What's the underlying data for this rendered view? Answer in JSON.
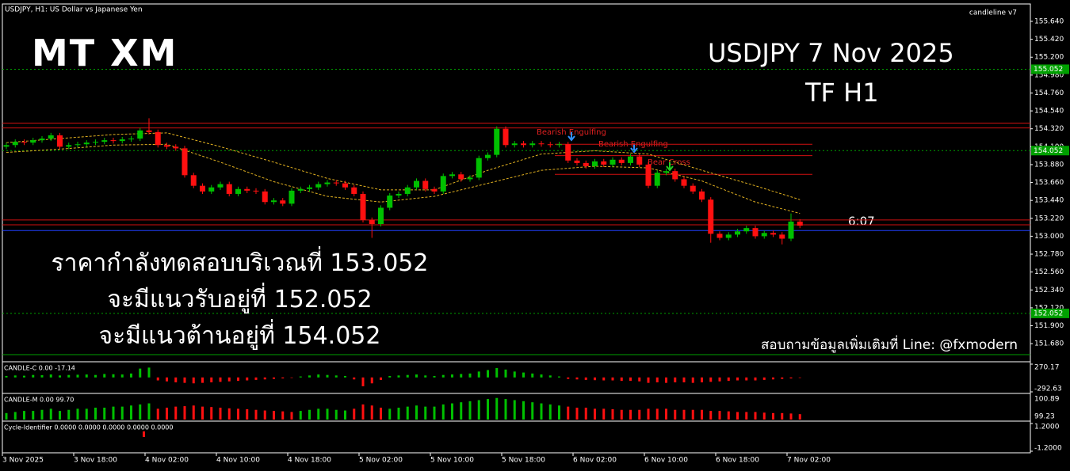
{
  "window": {
    "title": "USDJPY, H1: US Dollar vs Japanese Yen",
    "indicator_name": "candleline v7",
    "countdown": "6:07"
  },
  "overlay": {
    "logo_left": "MT",
    "logo_right": "XM",
    "headline": "USDJPY 7 Nov 2025",
    "timeframe": "TF H1",
    "lines": [
      "ราคากำลังทดสอบบริเวณที่ 153.052",
      "จะมีแนวรับอยู่ที่ 152.052",
      "จะมีแนวต้านอยู่ที่ 154.052"
    ],
    "contact": "สอบถามข้อมูลเพิ่มเติมที่ Line: @fxmodern"
  },
  "annotations": [
    "Bearish Engulfing",
    "Bearish Engulfing",
    "Bear Cross"
  ],
  "chart_data": {
    "type": "candlestick",
    "categories": [
      "3 Nov 2025",
      null,
      null,
      null,
      null,
      null,
      null,
      null,
      "3 Nov 18:00",
      null,
      null,
      null,
      null,
      null,
      null,
      null,
      "4 Nov 02:00",
      null,
      null,
      null,
      null,
      null,
      null,
      null,
      "4 Nov 10:00",
      null,
      null,
      null,
      null,
      null,
      null,
      null,
      "4 Nov 18:00",
      null,
      null,
      null,
      null,
      null,
      null,
      null,
      "5 Nov 02:00",
      null,
      null,
      null,
      null,
      null,
      null,
      null,
      "5 Nov 10:00",
      null,
      null,
      null,
      null,
      null,
      null,
      null,
      "5 Nov 18:00",
      null,
      null,
      null,
      null,
      null,
      null,
      null,
      "6 Nov 02:00",
      null,
      null,
      null,
      null,
      null,
      null,
      null,
      "6 Nov 10:00",
      null,
      null,
      null,
      null,
      null,
      null,
      null,
      "6 Nov 18:00",
      null,
      null,
      null,
      null,
      null,
      null,
      null,
      "7 Nov 02:00",
      null
    ],
    "open": [
      154.1,
      154.12,
      154.16,
      154.15,
      154.18,
      154.2,
      154.24,
      154.1,
      154.12,
      154.13,
      154.15,
      154.16,
      154.18,
      154.17,
      154.19,
      154.2,
      154.3,
      154.28,
      154.12,
      154.1,
      154.08,
      153.75,
      153.62,
      153.55,
      153.6,
      153.64,
      153.52,
      153.58,
      153.56,
      153.55,
      153.42,
      153.44,
      153.4,
      153.56,
      153.58,
      153.6,
      153.64,
      153.66,
      153.65,
      153.6,
      153.52,
      153.2,
      153.15,
      153.35,
      153.5,
      153.52,
      153.6,
      153.68,
      153.58,
      153.55,
      153.74,
      153.76,
      153.7,
      153.72,
      153.96,
      154.0,
      154.32,
      154.12,
      154.14,
      154.12,
      154.14,
      154.13,
      154.12,
      154.13,
      153.93,
      153.9,
      153.86,
      153.92,
      153.88,
      153.94,
      153.9,
      153.98,
      153.88,
      153.62,
      153.78,
      153.8,
      153.7,
      153.62,
      153.55,
      153.45,
      153.03,
      152.98,
      153.02,
      153.06,
      153.1,
      153.0,
      153.04,
      153.02,
      152.97,
      153.18
    ],
    "high": [
      154.15,
      154.19,
      154.19,
      154.21,
      154.23,
      154.27,
      154.27,
      154.15,
      154.16,
      154.18,
      154.19,
      154.21,
      154.21,
      154.22,
      154.23,
      154.33,
      154.45,
      154.31,
      154.15,
      154.13,
      154.11,
      153.78,
      153.65,
      153.63,
      153.67,
      153.67,
      153.61,
      153.61,
      153.59,
      153.58,
      153.47,
      153.47,
      153.59,
      153.61,
      153.63,
      153.67,
      153.69,
      153.69,
      153.68,
      153.63,
      153.55,
      153.23,
      153.38,
      153.53,
      153.55,
      153.63,
      153.71,
      153.71,
      153.61,
      153.77,
      153.79,
      153.79,
      153.75,
      153.99,
      154.03,
      154.35,
      154.35,
      154.17,
      154.17,
      154.17,
      154.17,
      154.16,
      154.16,
      154.16,
      153.96,
      153.93,
      153.95,
      153.95,
      153.97,
      153.97,
      154.01,
      154.01,
      153.91,
      153.81,
      153.83,
      153.83,
      153.73,
      153.65,
      153.58,
      153.48,
      153.06,
      153.05,
      153.09,
      153.13,
      153.13,
      153.07,
      153.07,
      153.05,
      153.28,
      153.21
    ],
    "low": [
      154.07,
      154.09,
      154.12,
      154.12,
      154.15,
      154.17,
      154.07,
      154.07,
      154.09,
      154.1,
      154.12,
      154.13,
      154.14,
      154.14,
      154.16,
      154.17,
      154.25,
      154.09,
      154.07,
      154.05,
      153.72,
      153.59,
      153.52,
      153.52,
      153.57,
      153.49,
      153.49,
      153.53,
      153.52,
      153.39,
      153.39,
      153.37,
      153.37,
      153.53,
      153.55,
      153.57,
      153.61,
      153.62,
      153.57,
      153.49,
      153.17,
      152.98,
      153.12,
      153.32,
      153.47,
      153.49,
      153.57,
      153.55,
      153.52,
      153.52,
      153.71,
      153.67,
      153.67,
      153.69,
      153.93,
      153.97,
      154.09,
      154.09,
      154.09,
      154.09,
      154.1,
      154.09,
      154.09,
      153.9,
      153.87,
      153.83,
      153.83,
      153.85,
      153.85,
      153.87,
      153.87,
      153.85,
      153.59,
      153.59,
      153.75,
      153.67,
      153.59,
      153.52,
      153.42,
      152.92,
      152.95,
      152.95,
      152.99,
      153.03,
      152.97,
      152.97,
      152.99,
      152.9,
      152.94,
      153.1
    ],
    "close": [
      154.12,
      154.16,
      154.15,
      154.18,
      154.2,
      154.24,
      154.1,
      154.12,
      154.13,
      154.15,
      154.16,
      154.18,
      154.17,
      154.19,
      154.2,
      154.3,
      154.28,
      154.12,
      154.1,
      154.08,
      153.75,
      153.62,
      153.55,
      153.6,
      153.64,
      153.52,
      153.58,
      153.56,
      153.55,
      153.42,
      153.44,
      153.4,
      153.56,
      153.58,
      153.6,
      153.64,
      153.66,
      153.65,
      153.6,
      153.52,
      153.2,
      153.15,
      153.35,
      153.5,
      153.52,
      153.6,
      153.68,
      153.58,
      153.55,
      153.74,
      153.76,
      153.7,
      153.72,
      153.96,
      154.0,
      154.32,
      154.12,
      154.14,
      154.12,
      154.14,
      154.13,
      154.12,
      154.13,
      153.93,
      153.9,
      153.86,
      153.92,
      153.88,
      153.94,
      153.9,
      153.98,
      153.88,
      153.62,
      153.78,
      153.8,
      153.7,
      153.62,
      153.55,
      153.45,
      153.03,
      152.98,
      153.02,
      153.06,
      153.1,
      153.0,
      153.04,
      153.02,
      152.97,
      153.18,
      153.13
    ],
    "up_color": "#00c000",
    "down_color": "#ff1010",
    "ylim": [
      151.477,
      155.854
    ],
    "yticks": [
      {
        "value": 155.64,
        "label": "155.640"
      },
      {
        "value": 155.42,
        "label": "155.420"
      },
      {
        "value": 155.2,
        "label": "155.200"
      },
      {
        "value": 154.98,
        "label": "154.980"
      },
      {
        "value": 154.76,
        "label": "154.760"
      },
      {
        "value": 154.54,
        "label": "154.540"
      },
      {
        "value": 154.32,
        "label": "154.320"
      },
      {
        "value": 154.1,
        "label": "154.100"
      },
      {
        "value": 153.88,
        "label": "153.880"
      },
      {
        "value": 153.66,
        "label": "153.660"
      },
      {
        "value": 153.44,
        "label": "153.440"
      },
      {
        "value": 153.22,
        "label": "153.220"
      },
      {
        "value": 153,
        "label": "153.000"
      },
      {
        "value": 152.78,
        "label": "152.780"
      },
      {
        "value": 152.56,
        "label": "152.560"
      },
      {
        "value": 152.34,
        "label": "152.340"
      },
      {
        "value": 152.12,
        "label": "152.120"
      },
      {
        "value": 151.9,
        "label": "151.900"
      },
      {
        "value": 151.68,
        "label": "151.680"
      }
    ],
    "bands": [
      {
        "color": "#e0b020",
        "x": [
          0,
          6,
          12,
          18,
          24,
          30,
          36,
          42,
          48,
          54,
          60,
          66,
          72,
          78,
          84,
          89
        ],
        "values": [
          154.15,
          154.2,
          154.25,
          154.27,
          154.1,
          153.91,
          153.71,
          153.57,
          153.57,
          153.81,
          154.01,
          154.05,
          154.01,
          153.81,
          153.62,
          153.45
        ]
      },
      {
        "color": "#e0b020",
        "x": [
          0,
          6,
          12,
          18,
          24,
          30,
          36,
          42,
          48,
          54,
          60,
          66,
          72,
          78,
          84,
          89
        ],
        "values": [
          154.03,
          154.07,
          154.12,
          154.13,
          153.91,
          153.67,
          153.49,
          153.42,
          153.49,
          153.65,
          153.81,
          153.86,
          153.84,
          153.68,
          153.42,
          153.28
        ]
      }
    ],
    "levels": [
      {
        "price": 154.39,
        "color": "#d01010",
        "style": "solid",
        "span": "full"
      },
      {
        "price": 154.33,
        "color": "#d01010",
        "style": "solid",
        "span": "full"
      },
      {
        "price": 154.13,
        "color": "#d01010",
        "style": "solid",
        "span": "partial"
      },
      {
        "price": 153.99,
        "color": "#d01010",
        "style": "solid",
        "span": "partial"
      },
      {
        "price": 153.76,
        "color": "#d01010",
        "style": "solid",
        "span": "partial"
      },
      {
        "price": 153.2,
        "color": "#d01010",
        "style": "solid",
        "span": "full"
      },
      {
        "price": 153.14,
        "color": "#d01010",
        "style": "solid",
        "span": "full"
      },
      {
        "price": 153.07,
        "color": "#2040ff",
        "style": "solid",
        "span": "full"
      },
      {
        "price": 155.052,
        "color": "#00a000",
        "style": "dotted",
        "span": "full",
        "tag": true
      },
      {
        "price": 154.052,
        "color": "#00a000",
        "style": "dotted",
        "span": "full",
        "tag": true
      },
      {
        "price": 152.052,
        "color": "#00a000",
        "style": "dotted",
        "span": "full",
        "tag": true
      },
      {
        "price": 151.545,
        "color": "#00a000",
        "style": "solid",
        "span": "full"
      }
    ],
    "panels": [
      {
        "label": "CANDLE-C 0.00 -17.14",
        "ylim": [
          -292.63,
          270.17
        ],
        "yticks": [
          270.17,
          -292.63
        ],
        "values": [
          30,
          40,
          35,
          50,
          45,
          60,
          40,
          50,
          55,
          60,
          50,
          70,
          65,
          60,
          80,
          180,
          200,
          -60,
          -80,
          -100,
          -110,
          -120,
          -110,
          -100,
          -90,
          -80,
          -70,
          -60,
          -50,
          -40,
          -30,
          -20,
          -10,
          20,
          40,
          60,
          50,
          40,
          30,
          -40,
          -180,
          -120,
          -50,
          30,
          40,
          50,
          60,
          40,
          30,
          50,
          60,
          70,
          80,
          120,
          150,
          190,
          160,
          120,
          100,
          80,
          60,
          40,
          20,
          -30,
          -40,
          -50,
          -55,
          -60,
          -60,
          -70,
          -70,
          -80,
          -110,
          -100,
          -110,
          -100,
          -100,
          -110,
          -100,
          -90,
          -80,
          -70,
          -60,
          -60,
          -60,
          -50,
          -40,
          -30,
          -20,
          -10
        ]
      },
      {
        "label": "CANDLE-M 0.00 99.70",
        "ylim": [
          0,
          110
        ],
        "scale_labels": [
          "100.89",
          "99.23"
        ],
        "values": [
          30,
          35,
          40,
          40,
          45,
          50,
          40,
          45,
          50,
          50,
          55,
          55,
          60,
          60,
          65,
          70,
          75,
          50,
          55,
          60,
          62,
          65,
          60,
          58,
          55,
          52,
          50,
          48,
          45,
          42,
          40,
          38,
          35,
          40,
          45,
          50,
          50,
          45,
          42,
          50,
          70,
          65,
          55,
          50,
          55,
          60,
          65,
          60,
          60,
          70,
          75,
          80,
          85,
          90,
          95,
          100,
          95,
          90,
          85,
          80,
          75,
          70,
          65,
          60,
          55,
          55,
          50,
          50,
          48,
          45,
          45,
          45,
          50,
          50,
          50,
          45,
          45,
          45,
          45,
          40,
          40,
          38,
          35,
          35,
          35,
          32,
          30,
          30,
          28,
          25
        ]
      },
      {
        "label": "Cycle-Identifier 0.0000 0.0000 0.0000 0.0000 0.0000",
        "ylim": [
          -1.2,
          1.2
        ],
        "yticks": [
          1.2,
          -1.2
        ],
        "tick_labels": [
          "1.2000",
          "-1.2000"
        ]
      }
    ]
  }
}
